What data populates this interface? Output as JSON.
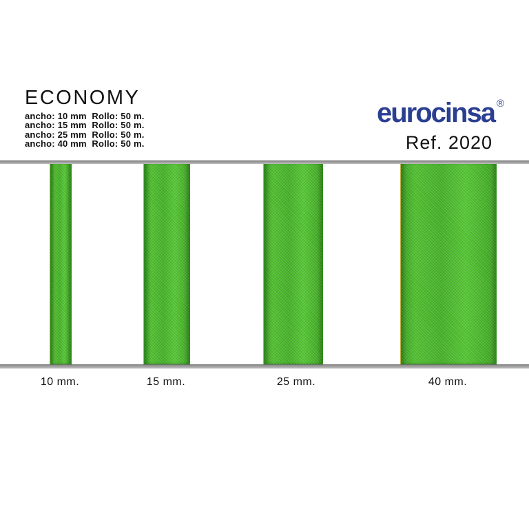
{
  "header": {
    "title": "ECONOMY",
    "specs": [
      "ancho: 10 mm  Rollo: 50 m.",
      "ancho: 15 mm  Rollo: 50 m.",
      "ancho: 25 mm  Rollo: 50 m.",
      "ancho: 40 mm  Rollo: 50 m."
    ]
  },
  "brand": {
    "logo": "eurocinsa",
    "registered_mark": "®",
    "reference": "Ref. 2020",
    "logo_color": "#2b3f92"
  },
  "ribbons": {
    "color": "#49b52a",
    "edge_color": "#2f8c1a",
    "rule_color": "#9a9a9a",
    "items": [
      {
        "label": "10 mm.",
        "width_mm": 10
      },
      {
        "label": "15 mm.",
        "width_mm": 15
      },
      {
        "label": "25 mm.",
        "width_mm": 25
      },
      {
        "label": "40 mm.",
        "width_mm": 40
      }
    ]
  }
}
